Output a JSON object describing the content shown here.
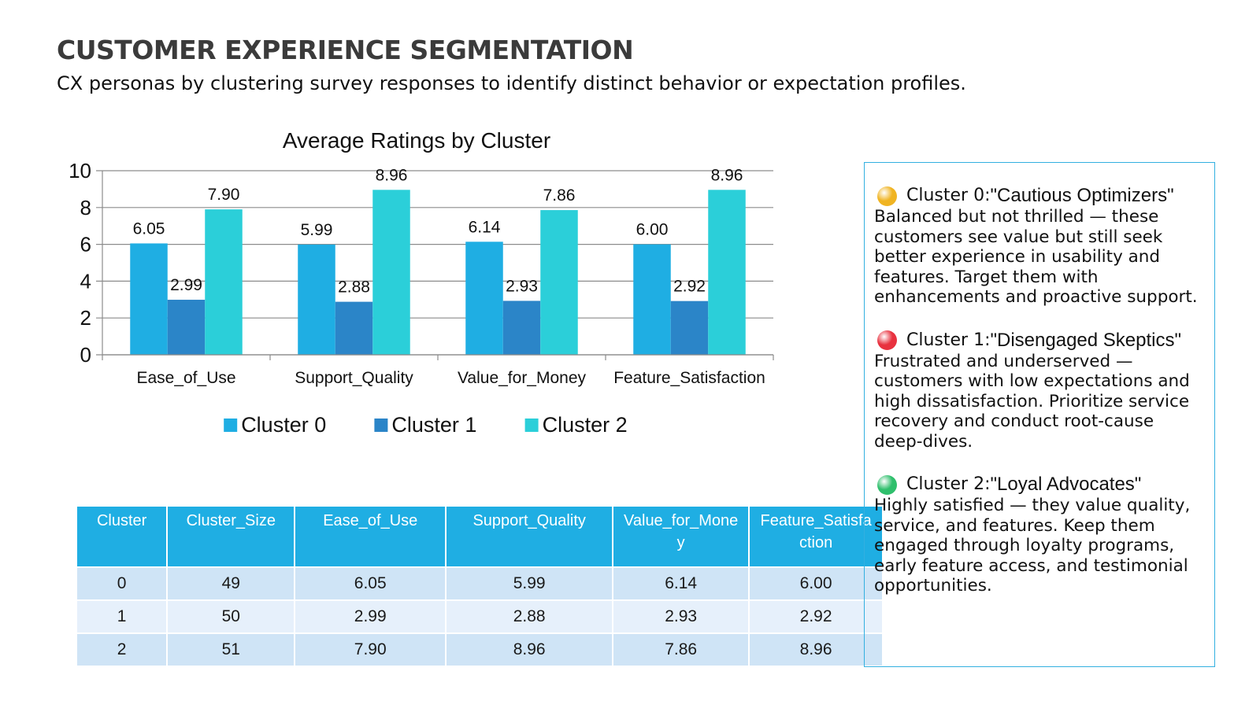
{
  "page": {
    "title": "CUSTOMER EXPERIENCE SEGMENTATION",
    "subtitle": "CX personas by clustering survey responses to identify distinct behavior or expectation profiles."
  },
  "chart_data": {
    "type": "bar",
    "title": "Average Ratings by Cluster",
    "categories": [
      "Ease_of_Use",
      "Support_Quality",
      "Value_for_Money",
      "Feature_Satisfaction"
    ],
    "series": [
      {
        "name": "Cluster 0",
        "values": [
          6.05,
          5.99,
          6.14,
          6.0
        ],
        "labels": [
          "6.05",
          "5.99",
          "6.14",
          "6.00"
        ],
        "color": "#1faee3"
      },
      {
        "name": "Cluster 1",
        "values": [
          2.99,
          2.88,
          2.93,
          2.92
        ],
        "labels": [
          "2.99",
          "2.88",
          "2.93",
          "2.92"
        ],
        "color": "#2b85c8"
      },
      {
        "name": "Cluster 2",
        "values": [
          7.9,
          8.96,
          7.86,
          8.96
        ],
        "labels": [
          "7.90",
          "8.96",
          "7.86",
          "8.96"
        ],
        "color": "#2bcfd9"
      }
    ],
    "ylim": [
      0,
      10
    ],
    "yticks": [
      "0",
      "2",
      "4",
      "6",
      "8",
      "10"
    ],
    "xlabel": "",
    "ylabel": "",
    "grid": true,
    "legend": "bottom"
  },
  "table": {
    "headers": [
      "Cluster",
      "Cluster_Size",
      "Ease_of_Use",
      "Support_Quality",
      "Value_for_Money",
      "Feature_Satisfaction"
    ],
    "rows": [
      [
        "0",
        "49",
        "6.05",
        "5.99",
        "6.14",
        "6.00"
      ],
      [
        "1",
        "50",
        "2.99",
        "2.88",
        "2.93",
        "2.92"
      ],
      [
        "2",
        "51",
        "7.90",
        "8.96",
        "7.86",
        "8.96"
      ]
    ]
  },
  "personas": [
    {
      "prefix": "Cluster 0: ",
      "name": "\"Cautious Optimizers\"",
      "color": "#f0b422",
      "icon": "yellow-circle-icon",
      "description": "Balanced but not thrilled — these customers see value but still seek better experience in usability and features. Target them with enhancements and proactive support."
    },
    {
      "prefix": "Cluster 1: ",
      "name": "\"Disengaged Skeptics\"",
      "color": "#e8323f",
      "icon": "red-circle-icon",
      "description": "Frustrated and underserved — customers with low expectations and high dissatisfaction. Prioritize service recovery and conduct root-cause deep-dives."
    },
    {
      "prefix": "Cluster 2: ",
      "name": "\"Loyal Advocates\"",
      "color": "#2fbf6c",
      "icon": "green-circle-icon",
      "description": "Highly satisfied — they value quality, service, and features. Keep them engaged through loyalty programs, early feature access, and testimonial opportunities."
    }
  ]
}
